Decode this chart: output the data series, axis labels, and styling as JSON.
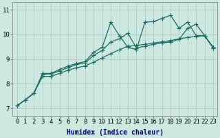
{
  "bg_color": "#cce8e0",
  "grid_color": "#aaccc4",
  "line_color": "#1a6b5a",
  "xlabel": "Humidex (Indice chaleur)",
  "ylabel_ticks": [
    7,
    8,
    9,
    10,
    11
  ],
  "xlim": [
    -0.5,
    23.5
  ],
  "ylim": [
    6.7,
    11.3
  ],
  "xticks": [
    0,
    1,
    2,
    3,
    4,
    5,
    6,
    7,
    8,
    9,
    10,
    11,
    12,
    13,
    14,
    15,
    16,
    17,
    18,
    19,
    20,
    21,
    22,
    23
  ],
  "series1_x": [
    0,
    1,
    2,
    3,
    4,
    5,
    6,
    7,
    8,
    9,
    10,
    11,
    12,
    13,
    14,
    15,
    16,
    17,
    18,
    19,
    20,
    21,
    22,
    23
  ],
  "series1_y": [
    7.1,
    7.35,
    7.62,
    8.42,
    8.42,
    8.58,
    8.72,
    8.82,
    8.9,
    9.28,
    9.48,
    10.5,
    9.95,
    9.48,
    9.38,
    10.5,
    10.52,
    10.65,
    10.78,
    10.25,
    10.5,
    9.95,
    9.95,
    9.48
  ],
  "series2_x": [
    0,
    1,
    2,
    3,
    4,
    5,
    6,
    7,
    8,
    9,
    10,
    11,
    12,
    13,
    14,
    15,
    16,
    17,
    18,
    19,
    20,
    21,
    22,
    23
  ],
  "series2_y": [
    7.1,
    7.35,
    7.62,
    8.38,
    8.4,
    8.52,
    8.65,
    8.78,
    8.85,
    9.15,
    9.35,
    9.7,
    9.82,
    10.05,
    9.45,
    9.52,
    9.6,
    9.65,
    9.7,
    9.8,
    10.25,
    10.42,
    9.95,
    9.45
  ],
  "series3_x": [
    0,
    1,
    2,
    3,
    4,
    5,
    6,
    7,
    8,
    9,
    10,
    11,
    12,
    13,
    14,
    15,
    16,
    17,
    18,
    19,
    20,
    21,
    22,
    23
  ],
  "series3_y": [
    7.1,
    7.35,
    7.62,
    8.3,
    8.3,
    8.42,
    8.55,
    8.65,
    8.72,
    8.88,
    9.05,
    9.22,
    9.38,
    9.52,
    9.55,
    9.6,
    9.65,
    9.7,
    9.75,
    9.82,
    9.88,
    9.92,
    9.95,
    9.45
  ],
  "fontsize_label": 7,
  "fontsize_tick": 6.5
}
